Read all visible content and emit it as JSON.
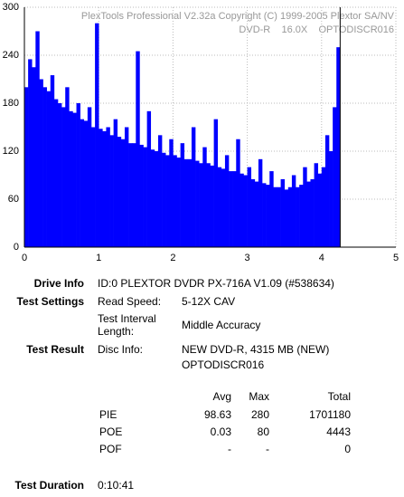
{
  "chart_data": {
    "type": "bar",
    "title": "PlexTools Professional V2.32a Copyright (C) 1999-2005 Plextor SA/NV",
    "subtitle": "DVD-R    16.0X    OPTODISCR016",
    "x": [
      0,
      0.05,
      0.1,
      0.15,
      0.2,
      0.25,
      0.3,
      0.35,
      0.4,
      0.45,
      0.5,
      0.55,
      0.6,
      0.65,
      0.7,
      0.75,
      0.8,
      0.85,
      0.9,
      0.95,
      1,
      1.05,
      1.1,
      1.15,
      1.2,
      1.25,
      1.3,
      1.35,
      1.4,
      1.45,
      1.5,
      1.55,
      1.6,
      1.65,
      1.7,
      1.75,
      1.8,
      1.85,
      1.9,
      1.95,
      2,
      2.05,
      2.1,
      2.15,
      2.2,
      2.25,
      2.3,
      2.35,
      2.4,
      2.45,
      2.5,
      2.55,
      2.6,
      2.65,
      2.7,
      2.75,
      2.8,
      2.85,
      2.9,
      2.95,
      3,
      3.05,
      3.1,
      3.15,
      3.2,
      3.25,
      3.3,
      3.35,
      3.4,
      3.45,
      3.5,
      3.55,
      3.6,
      3.65,
      3.7,
      3.75,
      3.8,
      3.85,
      3.9,
      3.95,
      4,
      4.05,
      4.1,
      4.15,
      4.2
    ],
    "values": [
      200,
      235,
      225,
      270,
      210,
      200,
      195,
      215,
      185,
      180,
      175,
      200,
      170,
      168,
      180,
      160,
      158,
      175,
      150,
      280,
      148,
      145,
      150,
      140,
      160,
      138,
      135,
      150,
      130,
      130,
      245,
      128,
      125,
      170,
      122,
      120,
      140,
      118,
      115,
      135,
      115,
      112,
      130,
      110,
      110,
      150,
      108,
      105,
      125,
      105,
      102,
      160,
      100,
      98,
      115,
      95,
      95,
      135,
      92,
      90,
      100,
      85,
      82,
      110,
      80,
      78,
      95,
      75,
      75,
      85,
      72,
      75,
      90,
      75,
      78,
      100,
      82,
      85,
      105,
      92,
      100,
      140,
      120,
      175,
      250
    ],
    "color": "#0000ff",
    "xlim": [
      0,
      5
    ],
    "xticks": [
      0,
      1,
      2,
      3,
      4,
      5
    ],
    "ylim": [
      0,
      300
    ],
    "yticks": [
      0,
      60,
      120,
      180,
      240,
      300
    ],
    "grid": true
  },
  "report": {
    "drive_info": {
      "label": "Drive Info",
      "value": "ID:0 PLEXTOR DVDR PX-716A V1.09 (#538634)"
    },
    "test_settings": {
      "label": "Test Settings",
      "read_speed": {
        "label": "Read Speed:",
        "value": "5-12X CAV"
      },
      "interval": {
        "label": "Test Interval Length:",
        "value": "Middle Accuracy"
      }
    },
    "test_result": {
      "label": "Test Result",
      "disc_label": "Disc Info:",
      "disc_lines": [
        "NEW DVD-R, 4315 MB (NEW)",
        "OPTODISCR016"
      ]
    },
    "table": {
      "header": [
        "Avg",
        "Max",
        "Total"
      ],
      "rows": [
        [
          "PIE",
          98.63,
          280,
          1701180
        ],
        [
          "POE",
          0.03,
          80,
          4443
        ],
        [
          "POF",
          "-",
          "-",
          0
        ]
      ]
    },
    "test_duration": {
      "label": "Test Duration",
      "value": "0:10:41"
    }
  }
}
